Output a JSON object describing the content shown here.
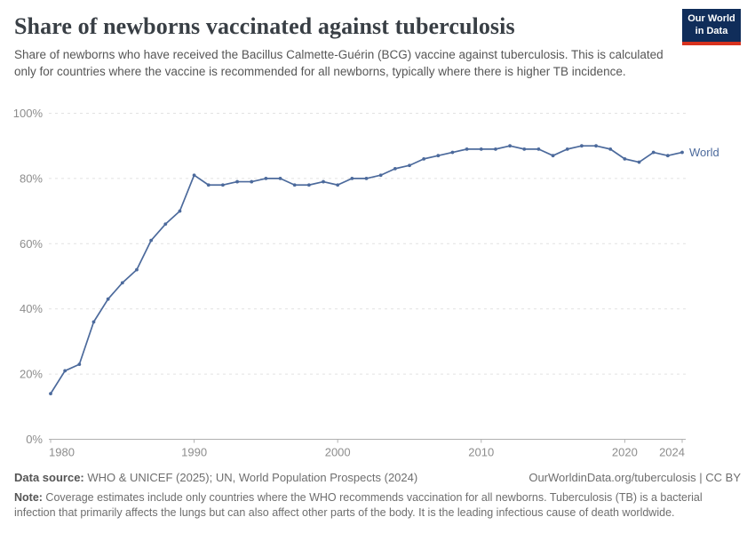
{
  "header": {
    "title": "Share of newborns vaccinated against tuberculosis",
    "subtitle": "Share of newborns who have received the Bacillus Calmette-Guérin (BCG) vaccine against tuberculosis. This is calculated only for countries where the vaccine is recommended for all newborns, typically where there is higher TB incidence.",
    "logo": {
      "line1": "Our World",
      "line2": "in Data",
      "bg_color": "#102d5a",
      "accent_color": "#d7321e"
    }
  },
  "chart_data": {
    "type": "line",
    "title": "Share of newborns vaccinated against tuberculosis",
    "xlabel": "",
    "ylabel": "",
    "xlim": [
      1980,
      2024
    ],
    "ylim": [
      0,
      100
    ],
    "grid": "horizontal-dashed",
    "legend_position": "end-of-line",
    "x_ticks": [
      1980,
      1990,
      2000,
      2010,
      2020,
      2024
    ],
    "y_ticks": [
      0,
      20,
      40,
      60,
      80,
      100
    ],
    "y_tick_suffix": "%",
    "series": [
      {
        "name": "World",
        "color": "#4C6A9C",
        "x": [
          1980,
          1981,
          1982,
          1983,
          1984,
          1985,
          1986,
          1987,
          1988,
          1989,
          1990,
          1991,
          1992,
          1993,
          1994,
          1995,
          1996,
          1997,
          1998,
          1999,
          2000,
          2001,
          2002,
          2003,
          2004,
          2005,
          2006,
          2007,
          2008,
          2009,
          2010,
          2011,
          2012,
          2013,
          2014,
          2015,
          2016,
          2017,
          2018,
          2019,
          2020,
          2021,
          2022,
          2023,
          2024
        ],
        "values": [
          14,
          21,
          23,
          36,
          43,
          48,
          52,
          61,
          66,
          70,
          81,
          78,
          78,
          79,
          79,
          80,
          80,
          78,
          78,
          79,
          78,
          80,
          80,
          81,
          83,
          84,
          86,
          87,
          88,
          89,
          89,
          89,
          90,
          89,
          89,
          87,
          89,
          90,
          90,
          89,
          86,
          85,
          88,
          87,
          88
        ]
      }
    ],
    "colors": {
      "gridline": "#e2e2e2",
      "axis": "#b0b0b0",
      "tick_label": "#8d8d8d"
    }
  },
  "footer": {
    "datasource_label": "Data source:",
    "datasource_text": " WHO & UNICEF (2025); UN, World Population Prospects (2024)",
    "link": "OurWorldinData.org/tuberculosis | CC BY",
    "note_label": "Note:",
    "note_text": " Coverage estimates include only countries where the WHO recommends vaccination for all newborns. Tuberculosis (TB) is a bacterial infection that primarily affects the lungs but can also affect other parts of the body. It is the leading infectious cause of death worldwide."
  }
}
